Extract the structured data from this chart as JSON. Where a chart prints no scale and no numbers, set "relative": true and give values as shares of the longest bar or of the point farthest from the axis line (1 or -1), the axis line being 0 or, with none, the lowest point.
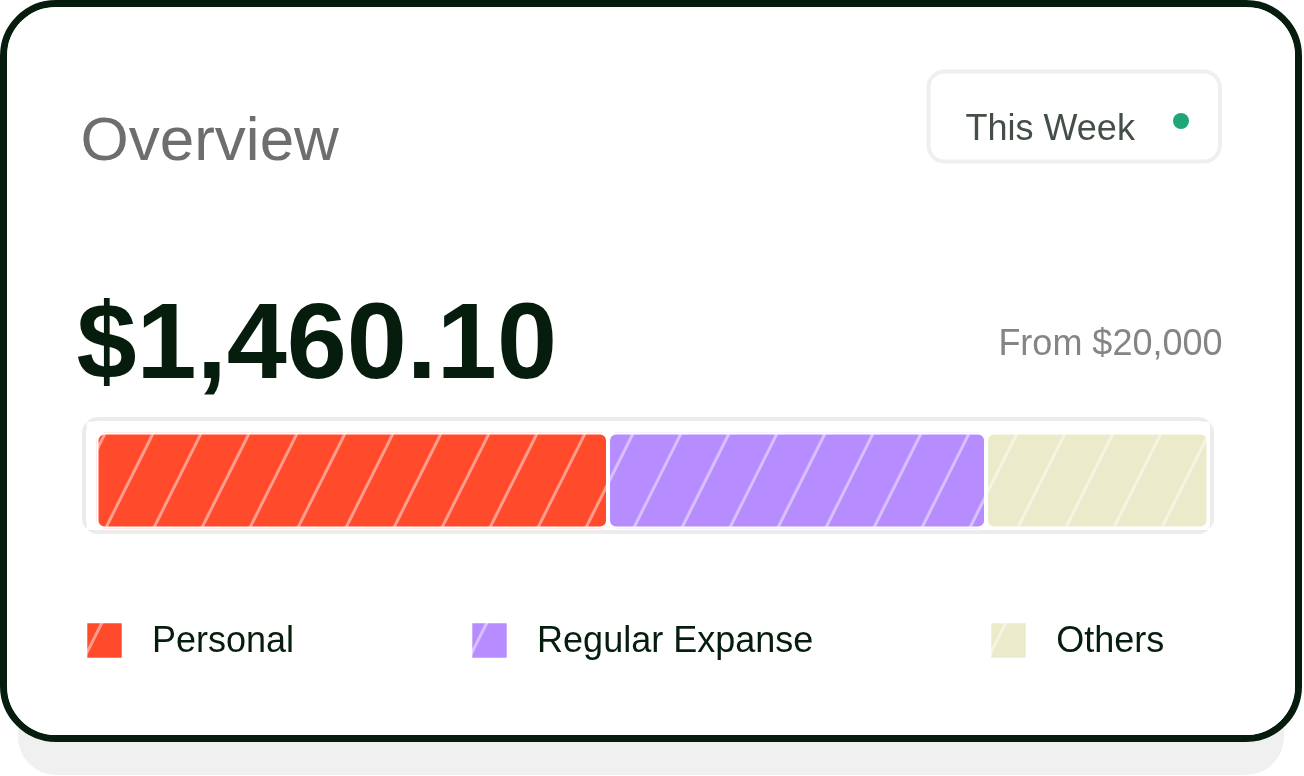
{
  "chart_data": {
    "type": "bar",
    "orientation": "horizontal",
    "stacked": true,
    "relative": true,
    "tick_labels": false,
    "legend": "bottom",
    "title": "Overview",
    "subtitle": "$1,460.10",
    "annotations": [
      "This Week",
      "From $20,000"
    ],
    "categories": [
      null
    ],
    "series": [
      {
        "name": "Personal",
        "color": "#ff4a2c",
        "values": [
          0.46
        ]
      },
      {
        "name": "Regular Expanse",
        "color": "#b78cff",
        "values": [
          0.34
        ]
      },
      {
        "name": "Others",
        "color": "#ebebcb",
        "values": [
          0.2
        ]
      }
    ]
  }
}
